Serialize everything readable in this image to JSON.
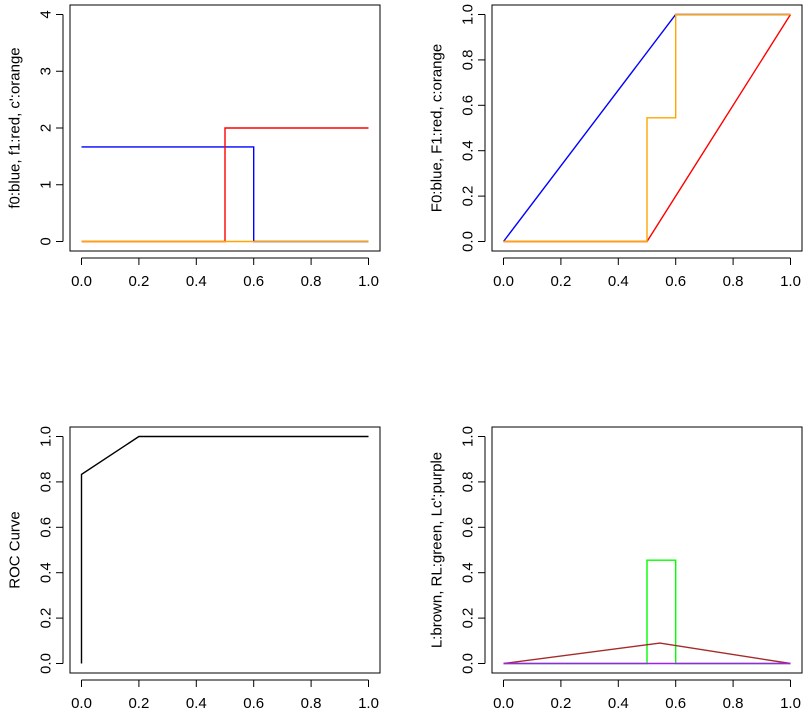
{
  "colors": {
    "blue": "#0000ff",
    "red": "#ff0000",
    "orange": "#ffa500",
    "black": "#000000",
    "brown": "#a52a2a",
    "green": "#00ff00",
    "purple": "#a020f0"
  },
  "chart_data": [
    {
      "type": "line",
      "ylabel": "f0:blue, f1:red, c':orange",
      "xlim": [
        0,
        1
      ],
      "ylim": [
        0,
        4
      ],
      "xticks": [
        "0.0",
        "0.2",
        "0.4",
        "0.6",
        "0.8",
        "1.0"
      ],
      "yticks": [
        "0",
        "1",
        "2",
        "3",
        "4"
      ],
      "series": [
        {
          "color": "#0000ff",
          "x": [
            0,
            0.6,
            0.6,
            1
          ],
          "y": [
            1.667,
            1.667,
            0,
            0
          ]
        },
        {
          "color": "#ff0000",
          "x": [
            0,
            0.5,
            0.5,
            1
          ],
          "y": [
            0,
            0,
            2,
            2
          ]
        },
        {
          "color": "#ffa500",
          "x": [
            0,
            1
          ],
          "y": [
            0,
            0
          ]
        }
      ]
    },
    {
      "type": "line",
      "ylabel": "F0:blue, F1:red, c:orange",
      "xlim": [
        0,
        1
      ],
      "ylim": [
        0,
        1
      ],
      "xticks": [
        "0.0",
        "0.2",
        "0.4",
        "0.6",
        "0.8",
        "1.0"
      ],
      "yticks": [
        "0.0",
        "0.2",
        "0.4",
        "0.6",
        "0.8",
        "1.0"
      ],
      "series": [
        {
          "color": "#0000ff",
          "x": [
            0,
            0.6,
            1
          ],
          "y": [
            0,
            1,
            1
          ]
        },
        {
          "color": "#ff0000",
          "x": [
            0,
            0.5,
            1
          ],
          "y": [
            0,
            0,
            1
          ]
        },
        {
          "color": "#ffa500",
          "x": [
            0,
            0.5,
            0.5,
            0.6,
            0.6,
            1
          ],
          "y": [
            0,
            0,
            0.545,
            0.545,
            1,
            1
          ]
        }
      ]
    },
    {
      "type": "line",
      "ylabel": "ROC Curve",
      "xlim": [
        0,
        1
      ],
      "ylim": [
        0,
        1
      ],
      "xticks": [
        "0.0",
        "0.2",
        "0.4",
        "0.6",
        "0.8",
        "1.0"
      ],
      "yticks": [
        "0.0",
        "0.2",
        "0.4",
        "0.6",
        "0.8",
        "1.0"
      ],
      "series": [
        {
          "color": "#000000",
          "x": [
            0,
            0,
            0.2,
            1
          ],
          "y": [
            0,
            0.833,
            1,
            1
          ]
        }
      ]
    },
    {
      "type": "line",
      "ylabel": "L:brown, RL:green, Lc':purple",
      "xlim": [
        0,
        1
      ],
      "ylim": [
        0,
        1
      ],
      "xticks": [
        "0.0",
        "0.2",
        "0.4",
        "0.6",
        "0.8",
        "1.0"
      ],
      "yticks": [
        "0.0",
        "0.2",
        "0.4",
        "0.6",
        "0.8",
        "1.0"
      ],
      "series": [
        {
          "color": "#00ff00",
          "x": [
            0,
            0.5,
            0.5,
            0.6,
            0.6,
            1
          ],
          "y": [
            0,
            0,
            0.455,
            0.455,
            0,
            0
          ]
        },
        {
          "color": "#a52a2a",
          "x": [
            0,
            0.545,
            1
          ],
          "y": [
            0,
            0.09,
            0
          ]
        },
        {
          "color": "#a020f0",
          "x": [
            0,
            1
          ],
          "y": [
            0,
            0
          ]
        }
      ]
    }
  ]
}
